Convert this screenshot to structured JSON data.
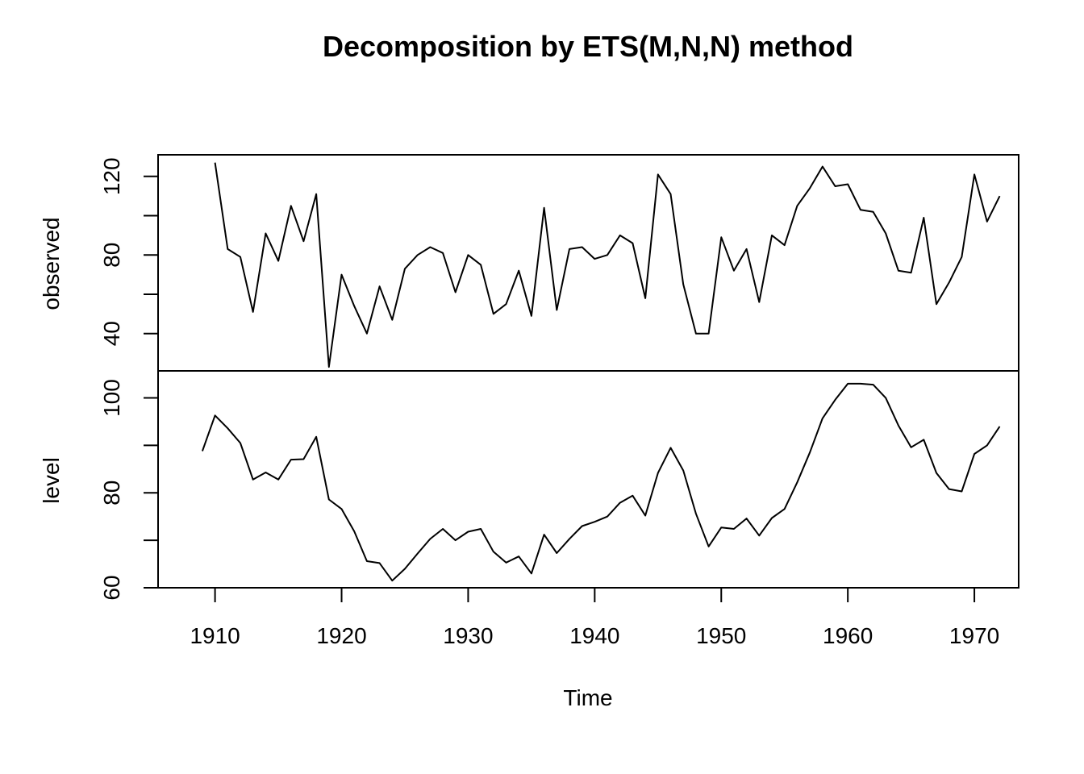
{
  "chart_data": {
    "type": "line",
    "title": "Decomposition by ETS(M,N,N) method",
    "xlabel": "Time",
    "x": [
      1909,
      1910,
      1911,
      1912,
      1913,
      1914,
      1915,
      1916,
      1917,
      1918,
      1919,
      1920,
      1921,
      1922,
      1923,
      1924,
      1925,
      1926,
      1927,
      1928,
      1929,
      1930,
      1931,
      1932,
      1933,
      1934,
      1935,
      1936,
      1937,
      1938,
      1939,
      1940,
      1941,
      1942,
      1943,
      1944,
      1945,
      1946,
      1947,
      1948,
      1949,
      1950,
      1951,
      1952,
      1953,
      1954,
      1955,
      1956,
      1957,
      1958,
      1959,
      1960,
      1961,
      1962,
      1963,
      1964,
      1965,
      1966,
      1967,
      1968,
      1969,
      1970,
      1971,
      1972
    ],
    "xlim": [
      1905.5,
      1973.5
    ],
    "x_ticks": [
      1910,
      1920,
      1930,
      1940,
      1950,
      1960,
      1970
    ],
    "x_tick_labels": [
      "1910",
      "1920",
      "1930",
      "1940",
      "1950",
      "1960",
      "1970"
    ],
    "panels": [
      {
        "name": "observed",
        "ylabel": "observed",
        "ylim": [
          21,
          131
        ],
        "y_ticks": [
          40,
          60,
          80,
          100,
          120
        ],
        "y_tick_labels": [
          "40",
          "80",
          "120"
        ],
        "labeled_ticks": [
          40,
          80,
          120
        ],
        "values": [
          null,
          127,
          83,
          79,
          51,
          91,
          77,
          105,
          87,
          111,
          23,
          70,
          54,
          40,
          64,
          47,
          73,
          80,
          84,
          81,
          61,
          80,
          75,
          50,
          55,
          72,
          49,
          104,
          52,
          83,
          84,
          78,
          80,
          90,
          86,
          58,
          121,
          111,
          65,
          40,
          40,
          89,
          72,
          83,
          56,
          90,
          85,
          105,
          114,
          125,
          115,
          116,
          103,
          102,
          91,
          72,
          71,
          99,
          55,
          66,
          79,
          121,
          97,
          110
        ]
      },
      {
        "name": "level",
        "ylabel": "level",
        "ylim": [
          60,
          105.7
        ],
        "y_ticks": [
          60,
          70,
          80,
          90,
          100
        ],
        "y_tick_labels": [
          "60",
          "80",
          "100"
        ],
        "labeled_ticks": [
          60,
          80,
          100
        ],
        "values": [
          88.8,
          96.3,
          93.6,
          90.5,
          82.8,
          84.3,
          82.8,
          87.0,
          87.1,
          91.8,
          78.6,
          76.6,
          71.9,
          65.6,
          65.2,
          61.5,
          64.0,
          67.2,
          70.3,
          72.4,
          70.0,
          71.8,
          72.4,
          67.6,
          65.3,
          66.6,
          63.0,
          71.2,
          67.3,
          70.3,
          73.0,
          73.9,
          75.0,
          77.9,
          79.4,
          75.2,
          84.2,
          89.5,
          84.7,
          75.6,
          68.7,
          72.7,
          72.4,
          74.6,
          71.0,
          74.7,
          76.6,
          82.2,
          88.5,
          95.7,
          99.6,
          103.0,
          103.0,
          102.8,
          100.0,
          94.2,
          89.6,
          91.2,
          84.2,
          80.8,
          80.3,
          88.2,
          90.0,
          94.0
        ]
      }
    ]
  }
}
